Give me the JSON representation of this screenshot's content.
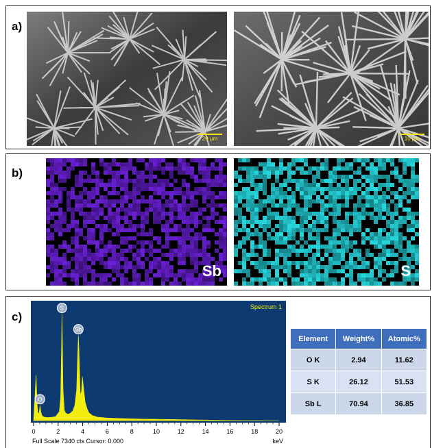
{
  "panels": {
    "a": {
      "label": "a)",
      "scale_left": "20 µm",
      "scale_right": "10 µm"
    },
    "b": {
      "label": "b)",
      "map_left_label": "Sb",
      "map_right_label": "S",
      "colors": {
        "sb": "#6a1fd6",
        "s": "#25d9e0"
      }
    },
    "c": {
      "label": "c)"
    }
  },
  "spectrum": {
    "title": "Spectrum 1",
    "footer_left": "Full Scale 7340 cts Cursor: 0.000",
    "unit": "keV",
    "peak_labels": [
      "S",
      "Sb",
      "O"
    ],
    "colors": {
      "background": "#0d3a70",
      "trace": "#f3ee10"
    }
  },
  "chart_data": {
    "type": "area",
    "title": "Spectrum 1",
    "xlabel": "keV",
    "ylabel": "",
    "xlim": [
      0,
      20
    ],
    "ylim": [
      0,
      7340
    ],
    "x_ticks": [
      "0",
      "2",
      "4",
      "6",
      "8",
      "10",
      "12",
      "14",
      "16",
      "18",
      "20"
    ],
    "series": [
      {
        "x": [
          0.0,
          0.15,
          0.2,
          0.28,
          0.35,
          0.45,
          0.52,
          0.6,
          0.7,
          0.9,
          1.2,
          1.5,
          1.8,
          2.1,
          2.2,
          2.28,
          2.31,
          2.34,
          2.4,
          2.5,
          2.6,
          2.8,
          3.0,
          3.2,
          3.35,
          3.5,
          3.6,
          3.65,
          3.7,
          3.8,
          3.9,
          3.97,
          4.05,
          4.2,
          4.35,
          4.5,
          4.8,
          5.2,
          6.0,
          7.0,
          8.0,
          9.0,
          10.0,
          11.0,
          12.0,
          13.0,
          14.0,
          16.0,
          18.0,
          20.0
        ],
        "y": [
          0,
          2200,
          3000,
          1200,
          450,
          520,
          1000,
          550,
          300,
          220,
          200,
          220,
          260,
          600,
          1500,
          5000,
          7000,
          5500,
          2000,
          700,
          500,
          420,
          480,
          650,
          1000,
          2000,
          4500,
          5600,
          4600,
          1700,
          1900,
          2900,
          2300,
          1200,
          800,
          520,
          330,
          230,
          170,
          140,
          120,
          100,
          90,
          75,
          65,
          50,
          35,
          15,
          5,
          0
        ]
      }
    ],
    "peaks": [
      {
        "label": "S",
        "x": 2.31,
        "y": 7000
      },
      {
        "label": "Sb",
        "x": 3.65,
        "y": 5600
      },
      {
        "label": "O",
        "x": 0.52,
        "y": 1000
      }
    ]
  },
  "table": {
    "headers": [
      "Element",
      "Weight%",
      "Atomic%"
    ],
    "rows": [
      [
        "O K",
        "2.94",
        "11.62"
      ],
      [
        "S K",
        "26.12",
        "51.53"
      ],
      [
        "Sb L",
        "70.94",
        "36.85"
      ]
    ]
  }
}
